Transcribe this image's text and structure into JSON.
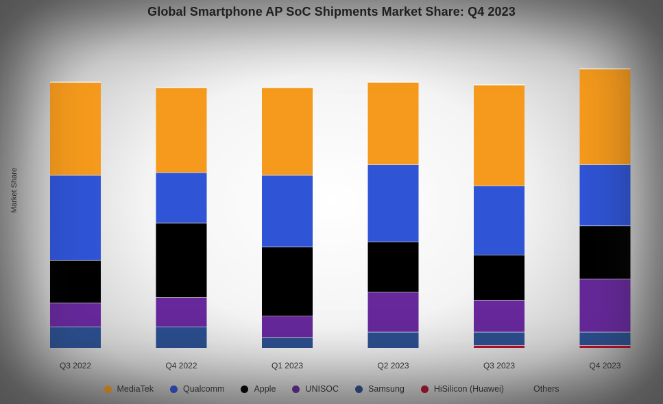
{
  "chart_data": {
    "type": "bar",
    "stacked": true,
    "title": "Global Smartphone AP SoC Shipments Market Share: Q4 2023",
    "xlabel": "",
    "ylabel": "Market Share",
    "ylim": [
      0,
      100
    ],
    "grid": false,
    "legend_position": "bottom",
    "categories": [
      "Q3 2022",
      "Q4 2022",
      "Q1 2023",
      "Q2 2023",
      "Q3 2023",
      "Q4 2023"
    ],
    "series": [
      {
        "name": "Others",
        "color": "#c8c8c8",
        "values": [
          0,
          0,
          0,
          0,
          0,
          0
        ]
      },
      {
        "name": "HiSilicon (Huawei)",
        "color": "#b0102a",
        "values": [
          0,
          0,
          0,
          0,
          1,
          1
        ]
      },
      {
        "name": "Samsung",
        "color": "#2b4d8c",
        "values": [
          8,
          8,
          4,
          6,
          5,
          5
        ]
      },
      {
        "name": "UNISOC",
        "color": "#66289a",
        "values": [
          9,
          11,
          8,
          15,
          12,
          20
        ]
      },
      {
        "name": "Apple",
        "color": "#000000",
        "values": [
          16,
          28,
          26,
          19,
          17,
          20
        ]
      },
      {
        "name": "Qualcomm",
        "color": "#2f54d6",
        "values": [
          32,
          19,
          27,
          29,
          26,
          23
        ]
      },
      {
        "name": "MediaTek",
        "color": "#f59a1c",
        "values": [
          35,
          32,
          33,
          31,
          38,
          36
        ]
      }
    ],
    "legend_order": [
      "MediaTek",
      "Qualcomm",
      "Apple",
      "UNISOC",
      "Samsung",
      "HiSilicon (Huawei)",
      "Others"
    ]
  }
}
